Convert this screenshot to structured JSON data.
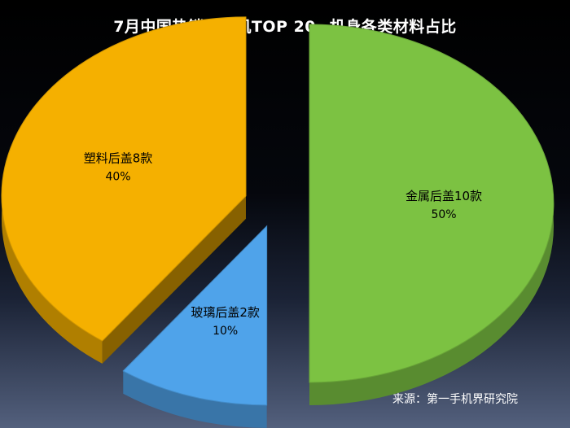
{
  "chart_data": {
    "type": "pie",
    "title": "7月中国热销千元机TOP 20--机身各类材料占比",
    "slices": [
      {
        "category": "金属后盖10款",
        "percent_label": "50%",
        "value": 50,
        "color": "#7cc242"
      },
      {
        "category": "玻璃后盖2款",
        "percent_label": "10%",
        "value": 10,
        "color": "#4fa3ea"
      },
      {
        "category": "塑料后盖8款",
        "percent_label": "40%",
        "value": 40,
        "color": "#f5b000"
      }
    ],
    "exploded": true,
    "style": "3d"
  },
  "source": "来源：第一手机界研究院"
}
